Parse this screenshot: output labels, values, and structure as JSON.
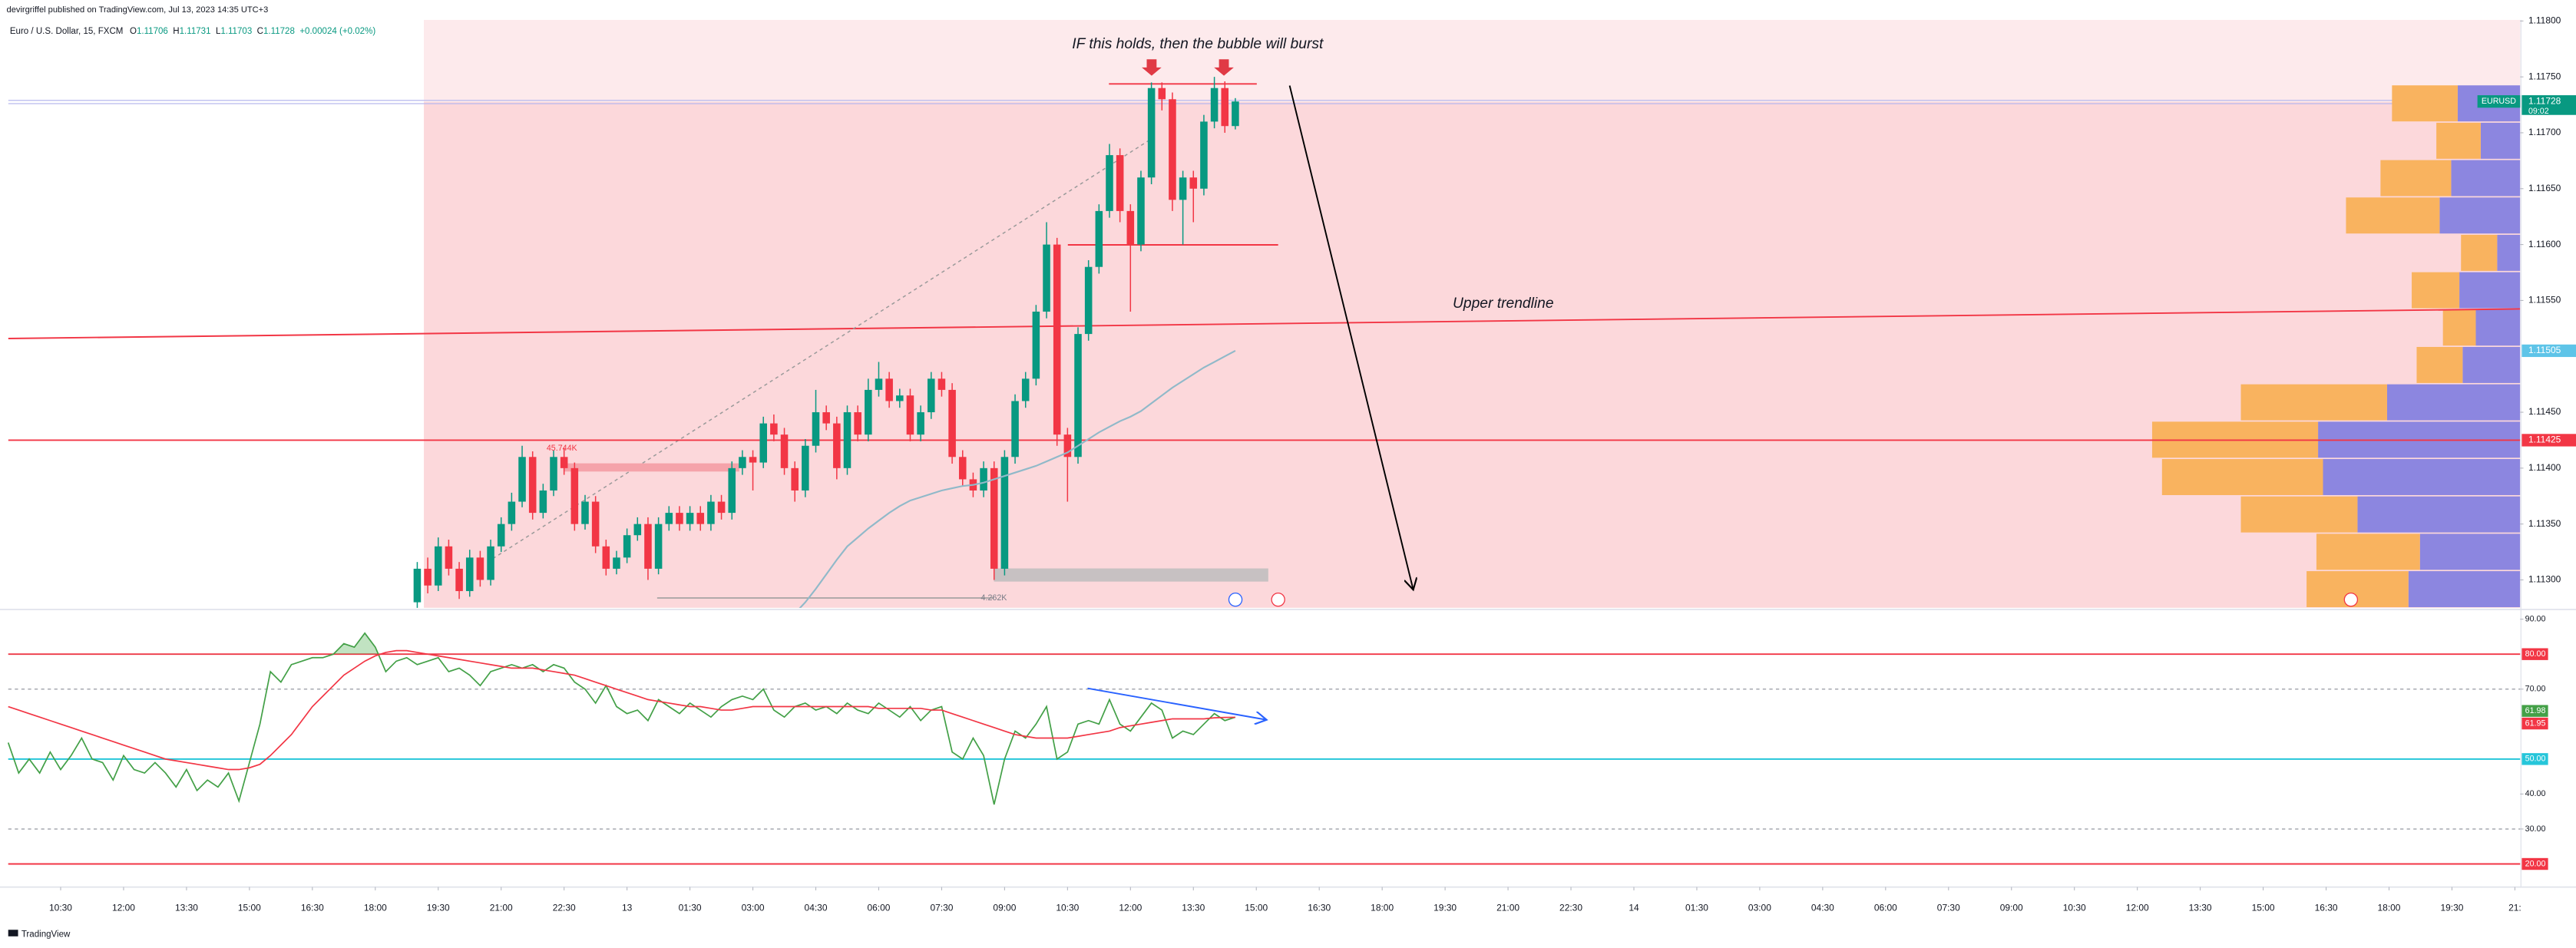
{
  "header": {
    "publisher": "devirgriffel published on TradingView.com, Jul 13, 2023 14:35 UTC+3",
    "symbol": "Euro / U.S. Dollar, 15, FXCM",
    "ohlc_letters": [
      "O",
      "H",
      "L",
      "C"
    ],
    "change": "+0.00024 (+0.02%)"
  },
  "footer": {
    "brand": "TradingView"
  },
  "chart_data": {
    "type": "candlestick",
    "xlim": [
      0,
      239.5
    ],
    "xticks": [
      {
        "value": 5,
        "label": "10:30"
      },
      {
        "value": 11,
        "label": "12:00"
      },
      {
        "value": 17,
        "label": "13:30"
      },
      {
        "value": 23,
        "label": "15:00"
      },
      {
        "value": 29,
        "label": "16:30"
      },
      {
        "value": 35,
        "label": "18:00"
      },
      {
        "value": 41,
        "label": "19:30"
      },
      {
        "value": 47,
        "label": "21:00"
      },
      {
        "value": 53,
        "label": "22:30"
      },
      {
        "value": 59,
        "label": "13"
      },
      {
        "value": 65,
        "label": "01:30"
      },
      {
        "value": 71,
        "label": "03:00"
      },
      {
        "value": 77,
        "label": "04:30"
      },
      {
        "value": 83,
        "label": "06:00"
      },
      {
        "value": 89,
        "label": "07:30"
      },
      {
        "value": 95,
        "label": "09:00"
      },
      {
        "value": 101,
        "label": "10:30"
      },
      {
        "value": 107,
        "label": "12:00"
      },
      {
        "value": 113,
        "label": "13:30"
      },
      {
        "value": 119,
        "label": "15:00"
      },
      {
        "value": 125,
        "label": "16:30"
      },
      {
        "value": 131,
        "label": "18:00"
      },
      {
        "value": 137,
        "label": "19:30"
      },
      {
        "value": 143,
        "label": "21:00"
      },
      {
        "value": 149,
        "label": "22:30"
      },
      {
        "value": 155,
        "label": "14"
      },
      {
        "value": 161,
        "label": "01:30"
      },
      {
        "value": 167,
        "label": "03:00"
      },
      {
        "value": 173,
        "label": "04:30"
      },
      {
        "value": 179,
        "label": "06:00"
      },
      {
        "value": 185,
        "label": "07:30"
      },
      {
        "value": 191,
        "label": "09:00"
      },
      {
        "value": 197,
        "label": "10:30"
      },
      {
        "value": 203,
        "label": "12:00"
      },
      {
        "value": 209,
        "label": "13:30"
      },
      {
        "value": 215,
        "label": "15:00"
      },
      {
        "value": 221,
        "label": "16:30"
      },
      {
        "value": 227,
        "label": "18:00"
      },
      {
        "value": 233,
        "label": "19:30"
      },
      {
        "value": 239,
        "label": "21:"
      }
    ],
    "ylim": [
      1.11275,
      1.11801
    ],
    "yticks": [
      {
        "value": 1.118,
        "label": "1.11800"
      },
      {
        "value": 1.1175,
        "label": "1.11750"
      },
      {
        "value": 1.117,
        "label": "1.11700"
      },
      {
        "value": 1.1165,
        "label": "1.11650"
      },
      {
        "value": 1.116,
        "label": "1.11600"
      },
      {
        "value": 1.1155,
        "label": "1.11550"
      },
      {
        "value": 1.1145,
        "label": "1.11450"
      },
      {
        "value": 1.114,
        "label": "1.11400"
      },
      {
        "value": 1.1135,
        "label": "1.11350"
      },
      {
        "value": 1.113,
        "label": "1.11300"
      }
    ],
    "up_color": "#089981",
    "down_color": "#f23645",
    "open": [
      null,
      null,
      null,
      null,
      null,
      null,
      null,
      null,
      null,
      null,
      null,
      null,
      null,
      null,
      null,
      null,
      null,
      null,
      null,
      null,
      null,
      null,
      null,
      null,
      null,
      null,
      null,
      null,
      null,
      null,
      null,
      null,
      null,
      null,
      null,
      null,
      null,
      null,
      null,
      1.1128,
      1.1131,
      1.11295,
      1.1133,
      1.1131,
      1.1129,
      1.1132,
      1.113,
      1.1133,
      1.1135,
      1.1137,
      1.1141,
      1.1136,
      1.1138,
      1.1141,
      1.114,
      1.1135,
      1.1137,
      1.1133,
      1.1131,
      1.1132,
      1.1134,
      1.1135,
      1.1131,
      1.1135,
      1.1136,
      1.1135,
      1.1136,
      1.1135,
      1.1137,
      1.1136,
      1.114,
      1.1141,
      1.11405,
      1.1144,
      1.1143,
      1.114,
      1.1138,
      1.1142,
      1.1145,
      1.1144,
      1.114,
      1.1145,
      1.1143,
      1.1147,
      1.1148,
      1.1146,
      1.11465,
      1.1143,
      1.1145,
      1.1148,
      1.1147,
      1.1141,
      1.1139,
      1.1138,
      1.114,
      1.1131,
      1.1141,
      1.1146,
      1.1148,
      1.1154,
      1.116,
      1.1143,
      1.1141,
      1.1152,
      1.1158,
      1.1163,
      1.1168,
      1.1163,
      1.116,
      1.1166,
      1.1174,
      1.1173,
      1.1164,
      1.1166,
      1.1165,
      1.1171,
      1.1174,
      1.11706
    ],
    "high": [
      null,
      null,
      null,
      null,
      null,
      null,
      null,
      null,
      null,
      null,
      null,
      null,
      null,
      null,
      null,
      null,
      null,
      null,
      null,
      null,
      null,
      null,
      null,
      null,
      null,
      null,
      null,
      null,
      null,
      null,
      null,
      null,
      null,
      null,
      null,
      null,
      null,
      null,
      null,
      1.11316,
      1.1132,
      1.11338,
      1.11336,
      1.11316,
      1.11327,
      1.11326,
      1.11336,
      1.11356,
      1.11378,
      1.1142,
      1.11415,
      1.11386,
      1.11416,
      1.11418,
      1.11405,
      1.11376,
      1.11375,
      1.11336,
      1.11326,
      1.11346,
      1.11356,
      1.11356,
      1.11356,
      1.11366,
      1.11366,
      1.11366,
      1.11366,
      1.11376,
      1.11376,
      1.11406,
      1.11416,
      1.11416,
      1.11446,
      1.11448,
      1.11436,
      1.11406,
      1.11426,
      1.1147,
      1.11456,
      1.11446,
      1.11456,
      1.11456,
      1.1148,
      1.11495,
      1.11486,
      1.11471,
      1.11471,
      1.11456,
      1.11486,
      1.11486,
      1.11476,
      1.11416,
      1.11396,
      1.11406,
      1.11406,
      1.11416,
      1.11466,
      1.11486,
      1.11546,
      1.1162,
      1.11606,
      1.11436,
      1.11526,
      1.11586,
      1.11636,
      1.1169,
      1.11686,
      1.11636,
      1.11666,
      1.11745,
      1.11745,
      1.11736,
      1.11666,
      1.11666,
      1.11716,
      1.1175,
      1.11746,
      1.11731
    ],
    "low": [
      null,
      null,
      null,
      null,
      null,
      null,
      null,
      null,
      null,
      null,
      null,
      null,
      null,
      null,
      null,
      null,
      null,
      null,
      null,
      null,
      null,
      null,
      null,
      null,
      null,
      null,
      null,
      null,
      null,
      null,
      null,
      null,
      null,
      null,
      null,
      null,
      null,
      null,
      null,
      1.11274,
      1.11288,
      1.1129,
      1.11304,
      1.11283,
      1.11285,
      1.11294,
      1.11295,
      1.11325,
      1.11344,
      1.11365,
      1.11354,
      1.11355,
      1.11375,
      1.11394,
      1.11344,
      1.11345,
      1.11324,
      1.11304,
      1.11305,
      1.11315,
      1.11335,
      1.113,
      1.11305,
      1.11344,
      1.11344,
      1.11344,
      1.11344,
      1.11344,
      1.11354,
      1.11354,
      1.11394,
      1.1138,
      1.114,
      1.11424,
      1.11394,
      1.1137,
      1.11374,
      1.11414,
      1.11434,
      1.1139,
      1.11394,
      1.11424,
      1.11424,
      1.11464,
      1.11454,
      1.11454,
      1.11424,
      1.11424,
      1.11444,
      1.11464,
      1.11404,
      1.11384,
      1.11374,
      1.11374,
      1.113,
      1.11304,
      1.11404,
      1.11454,
      1.11474,
      1.11534,
      1.1142,
      1.1137,
      1.11404,
      1.11514,
      1.11574,
      1.11624,
      1.1162,
      1.1154,
      1.11594,
      1.11654,
      1.1172,
      1.1163,
      1.116,
      1.1162,
      1.11644,
      1.11704,
      1.117,
      1.11703
    ],
    "close": [
      null,
      null,
      null,
      null,
      null,
      null,
      null,
      null,
      null,
      null,
      null,
      null,
      null,
      null,
      null,
      null,
      null,
      null,
      null,
      null,
      null,
      null,
      null,
      null,
      null,
      null,
      null,
      null,
      null,
      null,
      null,
      null,
      null,
      null,
      null,
      null,
      null,
      null,
      null,
      1.1131,
      1.11295,
      1.1133,
      1.1131,
      1.1129,
      1.1132,
      1.113,
      1.1133,
      1.1135,
      1.1137,
      1.1141,
      1.1136,
      1.1138,
      1.1141,
      1.114,
      1.1135,
      1.1137,
      1.1133,
      1.1131,
      1.1132,
      1.1134,
      1.1135,
      1.1131,
      1.1135,
      1.1136,
      1.1135,
      1.1136,
      1.1135,
      1.1137,
      1.1136,
      1.114,
      1.1141,
      1.11405,
      1.1144,
      1.1143,
      1.114,
      1.1138,
      1.1142,
      1.1145,
      1.1144,
      1.114,
      1.1145,
      1.1143,
      1.1147,
      1.1148,
      1.1146,
      1.11465,
      1.1143,
      1.1145,
      1.1148,
      1.1147,
      1.1141,
      1.1139,
      1.1138,
      1.114,
      1.1131,
      1.1141,
      1.1146,
      1.1148,
      1.1154,
      1.116,
      1.1143,
      1.1141,
      1.1152,
      1.1158,
      1.1163,
      1.1168,
      1.1163,
      1.116,
      1.1166,
      1.1174,
      1.1173,
      1.1164,
      1.1166,
      1.1165,
      1.1171,
      1.1174,
      1.11706,
      1.11728
    ],
    "ma": {
      "color": "#90b9c9",
      "values": [
        null,
        null,
        null,
        null,
        null,
        null,
        null,
        null,
        null,
        null,
        null,
        null,
        null,
        null,
        null,
        null,
        null,
        null,
        null,
        null,
        null,
        null,
        null,
        null,
        null,
        null,
        null,
        null,
        null,
        null,
        null,
        null,
        null,
        null,
        null,
        null,
        null,
        null,
        null,
        null,
        null,
        null,
        null,
        null,
        null,
        null,
        null,
        null,
        null,
        null,
        null,
        null,
        null,
        null,
        null,
        null,
        null,
        null,
        null,
        null,
        null,
        null,
        null,
        null,
        null,
        null,
        null,
        null,
        null,
        null,
        null,
        null,
        null,
        null,
        null,
        1.1127,
        1.1128,
        1.11292,
        1.11305,
        1.11318,
        1.1133,
        1.11338,
        1.11346,
        1.11353,
        1.1136,
        1.11366,
        1.11371,
        1.11374,
        1.11377,
        1.1138,
        1.11382,
        1.11384,
        1.11385,
        1.11387,
        1.1139,
        1.11393,
        1.11396,
        1.11399,
        1.11402,
        1.11406,
        1.1141,
        1.11414,
        1.1142,
        1.11426,
        1.11432,
        1.11437,
        1.11442,
        1.11446,
        1.11451,
        1.11458,
        1.11465,
        1.11472,
        1.11478,
        1.11484,
        1.1149,
        1.11495,
        1.115,
        1.11505
      ]
    },
    "level": {
      "value": 1.11425,
      "color": "#f23645"
    },
    "price_badge": {
      "symbol": "EURUSD",
      "countdown": "09:02",
      "color": "#089981"
    },
    "annotations": [
      "IF this holds, then the bubble will burst",
      "Upper trendline",
      "45.744K",
      "4.262K"
    ],
    "volume_profile": {
      "price_range": [
        1.11275,
        1.11743
      ],
      "colors": [
        "#f9b35f",
        "#8c86e0"
      ],
      "a": [
        40,
        27,
        43,
        57,
        22,
        29,
        20,
        28,
        89,
        101,
        98,
        71,
        63,
        62
      ],
      "b": [
        38,
        24,
        42,
        49,
        14,
        37,
        27,
        35,
        81,
        123,
        120,
        99,
        61,
        68
      ]
    },
    "rsi": {
      "type": "line",
      "ylim": [
        14.8,
        92.3
      ],
      "yticks": [
        {
          "value": 90,
          "label": "90.00"
        },
        {
          "value": 70,
          "label": "70.00"
        },
        {
          "value": 40,
          "label": "40.00"
        },
        {
          "value": 30,
          "label": "30.00"
        }
      ],
      "dashed_lines": [
        70,
        30
      ],
      "levels": [
        {
          "value": 80,
          "label": "80.00",
          "color": "#f23645"
        },
        {
          "value": 50,
          "label": "50.00",
          "color": "#26c6da"
        },
        {
          "value": 20,
          "label": "20.00",
          "color": "#f23645"
        }
      ],
      "series": [
        {
          "color": "#43a047",
          "values": [
            54.7,
            46,
            50,
            46,
            52,
            47,
            51,
            56,
            50,
            49,
            44,
            51,
            47,
            46,
            49,
            46,
            42,
            47,
            41,
            44,
            42,
            46,
            38,
            49,
            60,
            75,
            72,
            77,
            78,
            79,
            79,
            80,
            83,
            82,
            86,
            82,
            75,
            78,
            79,
            77,
            78,
            79,
            75,
            76,
            74,
            71,
            75,
            76,
            77,
            76,
            77,
            75,
            77,
            76,
            72,
            70,
            66,
            71,
            65,
            63,
            64,
            61,
            67,
            65,
            63,
            66,
            64,
            62,
            65,
            67,
            68,
            67,
            70,
            64,
            62,
            65,
            66,
            64,
            65,
            63,
            66,
            64,
            63,
            66,
            64,
            62,
            65,
            61,
            64,
            65,
            52,
            50,
            56,
            51,
            37,
            50,
            58,
            56,
            60,
            65,
            50,
            52,
            60,
            61,
            60,
            67,
            60,
            58,
            62,
            66,
            64,
            56,
            58,
            57,
            60,
            63,
            61,
            61.98
          ]
        },
        {
          "color": "#f23645",
          "values": [
            65,
            64,
            63,
            62,
            61,
            60,
            59,
            58,
            57,
            56,
            55,
            54,
            53,
            52,
            51,
            50,
            49.5,
            49,
            48.5,
            48,
            47.5,
            47,
            47,
            47.5,
            48.5,
            51,
            54,
            57,
            61,
            65,
            68,
            71,
            74,
            76,
            78,
            79.5,
            80.5,
            81,
            81,
            80.5,
            80,
            79.5,
            79,
            78.5,
            78,
            77.5,
            77,
            76.5,
            76,
            76,
            76,
            75.5,
            75,
            74.5,
            74,
            73,
            72,
            71,
            70,
            69,
            68,
            67,
            66.5,
            66,
            65.5,
            65,
            65,
            64.5,
            64,
            64,
            64.5,
            65,
            65,
            65,
            65,
            65,
            65,
            65,
            65,
            65,
            65,
            65,
            65,
            64.5,
            64.5,
            64.5,
            64.5,
            64.5,
            64,
            64,
            63,
            62,
            61,
            60,
            59,
            58,
            57,
            56.5,
            56,
            56,
            56,
            56,
            56.5,
            57,
            57.5,
            58,
            59,
            59.5,
            60,
            60.5,
            61,
            61.5,
            61.5,
            61.5,
            61.5,
            61.8,
            61.9,
            61.95
          ]
        }
      ]
    }
  }
}
